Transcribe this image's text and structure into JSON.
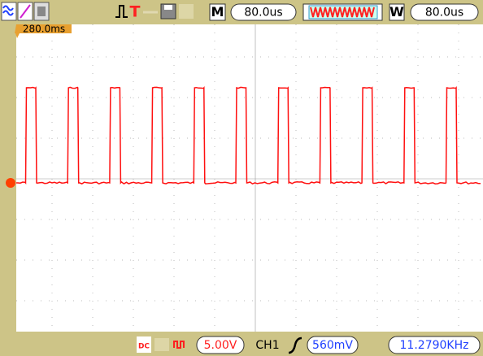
{
  "toolbar": {
    "trigger_label": "T",
    "main_label": "M",
    "main_timebase": "80.0us",
    "window_label": "W",
    "window_timebase": "80.0us"
  },
  "marker": {
    "trigger_position": "280.0ms"
  },
  "statusbar": {
    "coupling": "DC",
    "volts_div": "5.00V",
    "trigger_source": "CH1",
    "trigger_level": "560mV",
    "frequency": "11.2790KHz"
  }
}
